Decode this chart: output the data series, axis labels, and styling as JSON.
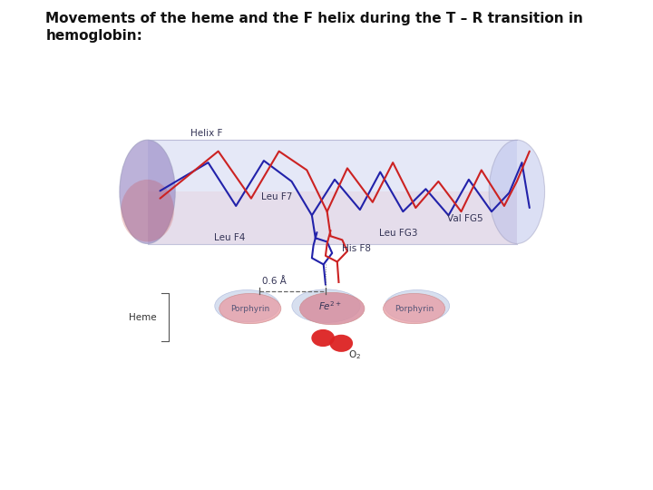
{
  "title_line1": "Movements of the heme and the F helix during the T – R transition in",
  "title_line2": "hemoglobin:",
  "title_fontsize": 11,
  "bg_color": "#ffffff",
  "helix_color_blue": "#2222aa",
  "helix_color_red": "#cc2222",
  "cylinder_face_color": "#b0b8e8",
  "cylinder_end_color": "#9080c0",
  "cylinder_alpha": 0.32,
  "porphyrin_pink": "#e8a0a8",
  "porphyrin_blue": "#b0c0e0",
  "fe_pink": "#d890a0",
  "fe_blue": "#b0c0e0",
  "o2_color": "#dd2222",
  "labels": {
    "helix_f": "Helix F",
    "leu_f7": "Leu F7",
    "leu_f4": "Leu F4",
    "leu_fg3": "Leu FG3",
    "his_f8": "His F8",
    "val_fg5": "Val FG5",
    "heme": "Heme",
    "porphyrin": "Porphyrin",
    "fe2p": "Fe2+",
    "o2": "O2",
    "dist": "0.6 Å"
  }
}
